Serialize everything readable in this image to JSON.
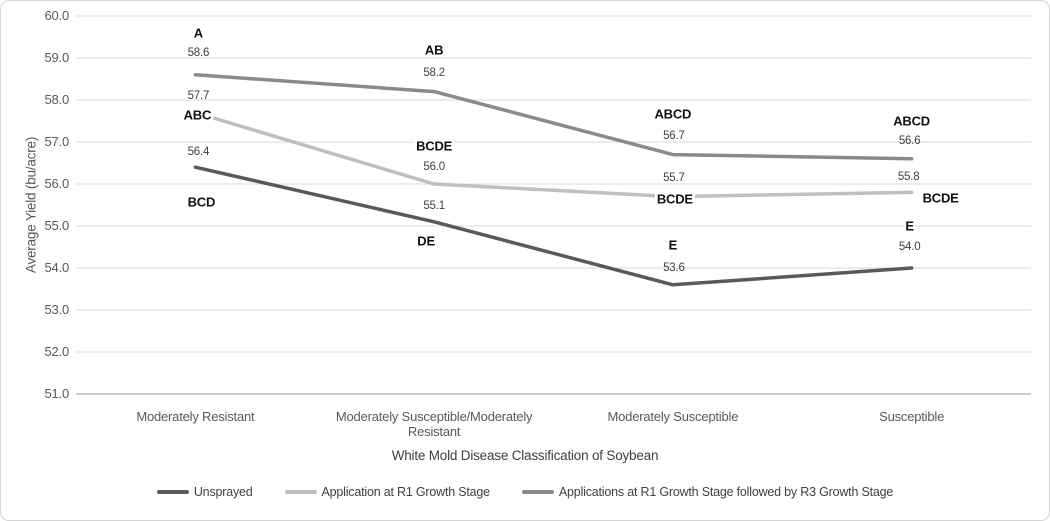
{
  "chart_data": {
    "type": "line",
    "title": "",
    "xlabel": "White Mold Disease Classification of Soybean",
    "ylabel": "Average Yield (bu/acre)",
    "ylim": [
      51.0,
      60.0
    ],
    "ytick_step": 1.0,
    "yticks": [
      60.0,
      59.0,
      58.0,
      57.0,
      56.0,
      55.0,
      54.0,
      53.0,
      52.0,
      51.0
    ],
    "grid": true,
    "legend_position": "bottom",
    "categories": [
      "Moderately Resistant",
      "Moderately Susceptible/Moderately Resistant",
      "Moderately Susceptible",
      "Susceptible"
    ],
    "category_label_lines": [
      [
        "Moderately Resistant"
      ],
      [
        "Moderately Susceptible/Moderately",
        "Resistant"
      ],
      [
        "Moderately Susceptible"
      ],
      [
        "Susceptible"
      ]
    ],
    "series": [
      {
        "name": "Unsprayed",
        "color": "#595959",
        "values": [
          56.4,
          55.1,
          53.6,
          54.0
        ],
        "significance_letters": [
          "BCD",
          "DE",
          "E",
          "E"
        ],
        "value_label_offsets": [
          [
            3,
            -15
          ],
          [
            0,
            -16
          ],
          [
            1,
            -17
          ],
          [
            -2,
            -21
          ]
        ],
        "letter_label_offsets": [
          [
            6,
            35
          ],
          [
            -8,
            19
          ],
          [
            0,
            -40
          ],
          [
            -2,
            -42
          ]
        ]
      },
      {
        "name": "Application at R1 Growth Stage",
        "color": "#bfbfbf",
        "values": [
          57.7,
          56.0,
          55.7,
          55.8
        ],
        "significance_letters": [
          "ABC",
          "BCDE",
          "BCDE",
          "BCDE"
        ],
        "value_label_offsets": [
          [
            3,
            -17
          ],
          [
            0,
            -17
          ],
          [
            1,
            -19
          ],
          [
            -3,
            -15
          ]
        ],
        "letter_label_offsets": [
          [
            2,
            2
          ],
          [
            0,
            -38
          ],
          [
            2,
            2
          ],
          [
            29,
            6
          ]
        ]
      },
      {
        "name": "Applications at R1 Growth Stage followed by R3 Growth Stage",
        "color": "#8a8a8a",
        "values": [
          58.6,
          58.2,
          56.7,
          56.6
        ],
        "significance_letters": [
          "A",
          "AB",
          "ABCD",
          "ABCD"
        ],
        "value_label_offsets": [
          [
            3,
            -22
          ],
          [
            0,
            -19
          ],
          [
            1,
            -19
          ],
          [
            -2,
            -18
          ]
        ],
        "letter_label_offsets": [
          [
            3,
            -42
          ],
          [
            0,
            -42
          ],
          [
            0,
            -41
          ],
          [
            0,
            -38
          ]
        ]
      }
    ]
  },
  "colors": {
    "background": "#ffffff",
    "frame_border": "#d6d6d6",
    "gridline": "#d9d9d9",
    "axis_line": "#b8b8b8",
    "tick_text": "#595959",
    "value_label_text": "#3f3f3f",
    "letter_label_text": "#111111"
  }
}
